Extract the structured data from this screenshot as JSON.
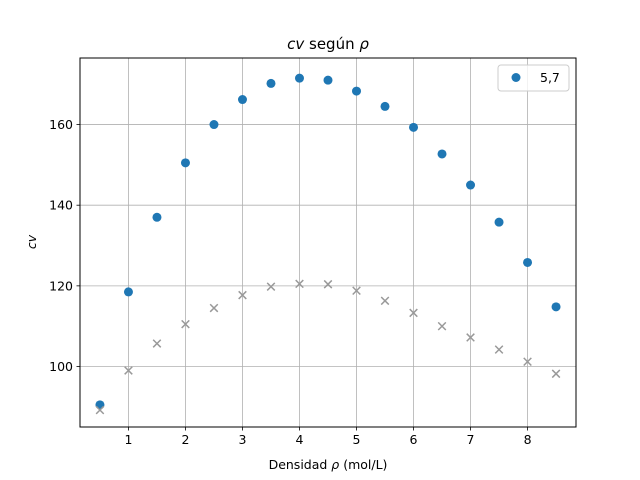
{
  "chart_data": {
    "type": "scatter",
    "title_main": "cv",
    "title_mid": " según ",
    "title_sym": "ρ",
    "xlabel_pre": "Densidad ",
    "xlabel_sym": "ρ",
    "xlabel_post": " (mol/L)",
    "ylabel": "cv",
    "xlim": [
      0.15,
      8.85
    ],
    "ylim": [
      85,
      176.5
    ],
    "xticks": [
      1,
      2,
      3,
      4,
      5,
      6,
      7,
      8
    ],
    "yticks": [
      100,
      120,
      140,
      160
    ],
    "grid": true,
    "legend_position": "top-right",
    "series": [
      {
        "name": "5,7",
        "marker": "circle",
        "color": "#1f77b4",
        "x": [
          0.5,
          1.0,
          1.5,
          2.0,
          2.5,
          3.0,
          3.5,
          4.0,
          4.5,
          5.0,
          5.5,
          6.0,
          6.5,
          7.0,
          7.5,
          8.0,
          8.5
        ],
        "y": [
          90.5,
          118.5,
          137.0,
          150.5,
          160.0,
          166.2,
          170.2,
          171.5,
          171.0,
          168.3,
          164.5,
          159.3,
          152.7,
          145.0,
          135.8,
          125.8,
          114.8
        ]
      },
      {
        "marker": "x",
        "color": "#999999",
        "x": [
          0.5,
          1.0,
          1.5,
          2.0,
          2.5,
          3.0,
          3.5,
          4.0,
          4.5,
          5.0,
          5.5,
          6.0,
          6.5,
          7.0,
          7.5,
          8.0,
          8.5
        ],
        "y": [
          89.2,
          99.0,
          105.7,
          110.5,
          114.5,
          117.7,
          119.8,
          120.5,
          120.4,
          118.8,
          116.3,
          113.3,
          110.0,
          107.2,
          104.2,
          101.2,
          98.2
        ]
      }
    ]
  }
}
